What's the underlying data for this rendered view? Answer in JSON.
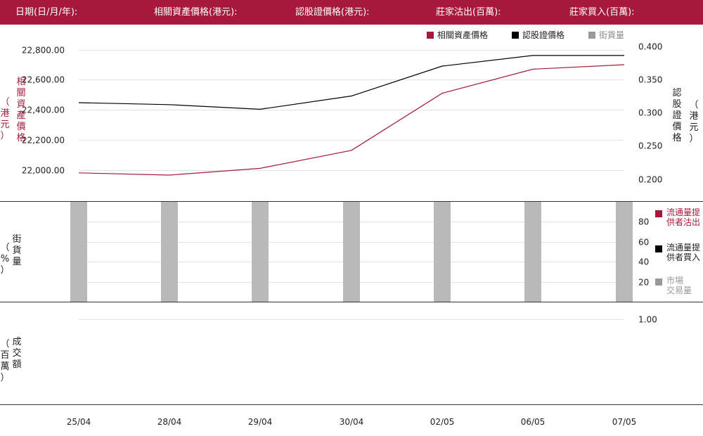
{
  "header": {
    "date_label": "日期(日/月/年):",
    "underlying_label": "相關資產價格(港元):",
    "warrant_label": "認股證價格(港元):",
    "bid_sell_label": "莊家沽出(百萬):",
    "bid_buy_label": "莊家買入(百萬):"
  },
  "legend": {
    "underlying": "相關資產價格",
    "warrant": "認股證價格",
    "outstanding": "街貨量"
  },
  "axis_labels": {
    "left_top": [
      "相",
      "關",
      "資",
      "產",
      "價",
      "格"
    ],
    "left_top_unit": [
      "（",
      "港",
      "元",
      "）"
    ],
    "right_top": [
      "認",
      "股",
      "證",
      "價",
      "格"
    ],
    "right_top_unit": [
      "（",
      "港",
      "元",
      "）"
    ],
    "middle_left": [
      "街",
      "貨",
      "量"
    ],
    "middle_left_unit": [
      "（",
      "%",
      "）"
    ],
    "bottom_left": [
      "成",
      "交",
      "額"
    ],
    "bottom_left_unit": [
      "（",
      "百",
      "萬",
      "）"
    ]
  },
  "legend_middle": {
    "lp_sell": [
      "流通量提",
      "供者沽出"
    ],
    "lp_buy": [
      "流通量提",
      "供者買入"
    ],
    "market": [
      "市場",
      "交易量"
    ]
  },
  "colors": {
    "brand": "#a6193c",
    "underlying": "#a6193c",
    "warrant": "#000000",
    "outstanding": "#b9b9b9",
    "market_legend": "#999999"
  },
  "chart_data": [
    {
      "type": "line",
      "x": [
        "25/04",
        "28/04",
        "29/04",
        "30/04",
        "02/05",
        "06/05",
        "07/05"
      ],
      "series": [
        {
          "name": "相關資產價格",
          "axis": "left",
          "values": [
            21980,
            21965,
            22010,
            22130,
            22510,
            22670,
            22700
          ]
        },
        {
          "name": "認股證價格",
          "axis": "right",
          "values": [
            0.315,
            0.312,
            0.305,
            0.325,
            0.37,
            0.386,
            0.386
          ]
        }
      ],
      "left_ticks": [
        "22,000.00",
        "22,200.00",
        "22,400.00",
        "22,600.00",
        "22,800.00"
      ],
      "left_tick_values": [
        22000,
        22200,
        22400,
        22600,
        22800
      ],
      "right_ticks": [
        "0.200",
        "0.250",
        "0.300",
        "0.350",
        "0.400"
      ],
      "right_tick_values": [
        0.2,
        0.25,
        0.3,
        0.35,
        0.4
      ],
      "ylim_left": [
        21890,
        22850
      ],
      "ylim_right": [
        0.189,
        0.406
      ]
    },
    {
      "type": "bar",
      "x": [
        "25/04",
        "28/04",
        "29/04",
        "30/04",
        "02/05",
        "06/05",
        "07/05"
      ],
      "series": [
        {
          "name": "街貨量",
          "values": [
            100,
            100,
            100,
            100,
            100,
            100,
            100
          ]
        }
      ],
      "right_ticks": [
        "20",
        "40",
        "60",
        "80"
      ],
      "right_tick_values": [
        20,
        40,
        60,
        80
      ],
      "ylim": [
        0,
        100
      ]
    },
    {
      "type": "bar",
      "x": [
        "25/04",
        "28/04",
        "29/04",
        "30/04",
        "02/05",
        "06/05",
        "07/05"
      ],
      "series": [],
      "right_ticks": [
        "1.00"
      ],
      "right_tick_values": [
        1
      ],
      "ylim": [
        0,
        1.2
      ]
    }
  ]
}
